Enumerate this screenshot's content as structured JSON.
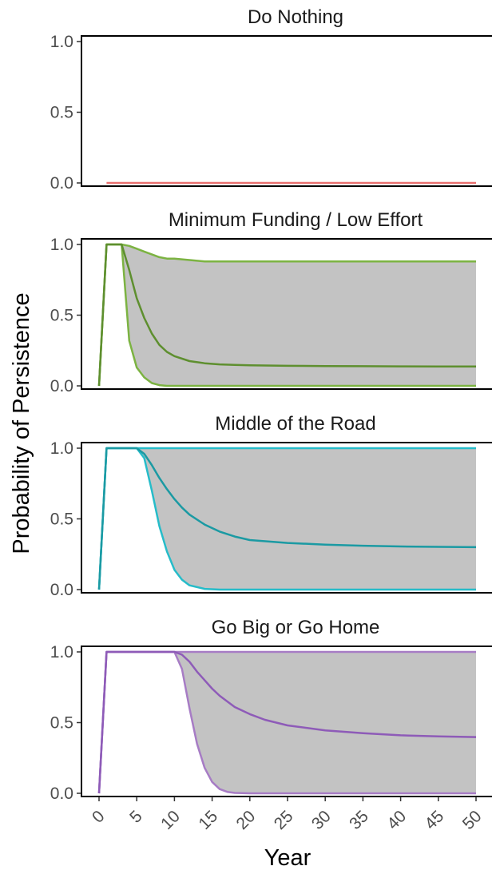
{
  "chart_data": {
    "type": "line",
    "xlabel": "Year",
    "ylabel": "Probability of Persistence",
    "xlim": [
      0,
      50
    ],
    "ylim": [
      0,
      1
    ],
    "x_ticks": [
      0,
      5,
      10,
      15,
      20,
      25,
      30,
      35,
      40,
      45,
      50
    ],
    "x_tick_labels": [
      "0",
      "5",
      "10",
      "15",
      "20",
      "25",
      "30",
      "35",
      "40",
      "45",
      "50"
    ],
    "y_ticks": [
      0,
      0.5,
      1
    ],
    "y_tick_labels": [
      "0.0",
      "0.5",
      "1.0"
    ],
    "grid": false,
    "band_color": "#c3c3c3",
    "panels": [
      {
        "title": "Do Nothing",
        "color": "#e8706f",
        "dark_color": "#e8706f",
        "x": [
          1,
          50
        ],
        "median": [
          0,
          0
        ],
        "upper": null,
        "lower": null
      },
      {
        "title": "Minimum Funding / Low Effort",
        "color": "#7cb342",
        "dark_color": "#5e8f2f",
        "x": [
          0,
          1,
          2,
          3,
          4,
          5,
          6,
          7,
          8,
          9,
          10,
          12,
          14,
          16,
          18,
          20,
          25,
          30,
          35,
          40,
          45,
          50
        ],
        "median": [
          0,
          1,
          1,
          1,
          0.82,
          0.62,
          0.48,
          0.37,
          0.29,
          0.24,
          0.21,
          0.175,
          0.16,
          0.152,
          0.148,
          0.145,
          0.142,
          0.14,
          0.139,
          0.138,
          0.137,
          0.137
        ],
        "upper": [
          0,
          1,
          1,
          1,
          0.99,
          0.97,
          0.95,
          0.93,
          0.91,
          0.9,
          0.9,
          0.89,
          0.88,
          0.88,
          0.88,
          0.88,
          0.88,
          0.88,
          0.88,
          0.88,
          0.88,
          0.88
        ],
        "lower": [
          0,
          1,
          1,
          1,
          0.32,
          0.13,
          0.06,
          0.02,
          0.005,
          0,
          0,
          0,
          0,
          0,
          0,
          0,
          0,
          0,
          0,
          0,
          0,
          0
        ]
      },
      {
        "title": "Middle of the Road",
        "color": "#26bcc9",
        "dark_color": "#1b9aa3",
        "x": [
          0,
          1,
          2,
          3,
          4,
          5,
          6,
          7,
          8,
          9,
          10,
          11,
          12,
          14,
          16,
          18,
          20,
          25,
          30,
          35,
          40,
          45,
          50
        ],
        "median": [
          0,
          1,
          1,
          1,
          1,
          1,
          0.96,
          0.88,
          0.79,
          0.71,
          0.64,
          0.58,
          0.53,
          0.46,
          0.41,
          0.375,
          0.35,
          0.33,
          0.318,
          0.31,
          0.305,
          0.302,
          0.3
        ],
        "upper": [
          0,
          1,
          1,
          1,
          1,
          1,
          1,
          1,
          1,
          1,
          1,
          1,
          1,
          1,
          1,
          1,
          1,
          1,
          1,
          1,
          1,
          1,
          1
        ],
        "lower": [
          0,
          1,
          1,
          1,
          1,
          1,
          0.93,
          0.7,
          0.45,
          0.27,
          0.14,
          0.07,
          0.03,
          0.005,
          0,
          0,
          0,
          0,
          0,
          0,
          0,
          0,
          0
        ]
      },
      {
        "title": "Go Big or Go Home",
        "color": "#a77cc5",
        "dark_color": "#8e5bb8",
        "x": [
          0,
          1,
          2,
          4,
          6,
          8,
          10,
          11,
          12,
          13,
          14,
          15,
          16,
          17,
          18,
          20,
          22,
          25,
          30,
          35,
          40,
          45,
          50
        ],
        "median": [
          0,
          1,
          1,
          1,
          1,
          1,
          1,
          0.98,
          0.93,
          0.86,
          0.8,
          0.74,
          0.69,
          0.65,
          0.61,
          0.56,
          0.52,
          0.48,
          0.445,
          0.425,
          0.41,
          0.402,
          0.398
        ],
        "upper": [
          0,
          1,
          1,
          1,
          1,
          1,
          1,
          1,
          1,
          1,
          1,
          1,
          1,
          1,
          1,
          1,
          1,
          1,
          1,
          1,
          1,
          1,
          1
        ],
        "lower": [
          0,
          1,
          1,
          1,
          1,
          1,
          1,
          0.88,
          0.6,
          0.35,
          0.18,
          0.08,
          0.03,
          0.01,
          0.003,
          0,
          0,
          0,
          0,
          0,
          0,
          0,
          0
        ]
      }
    ]
  }
}
